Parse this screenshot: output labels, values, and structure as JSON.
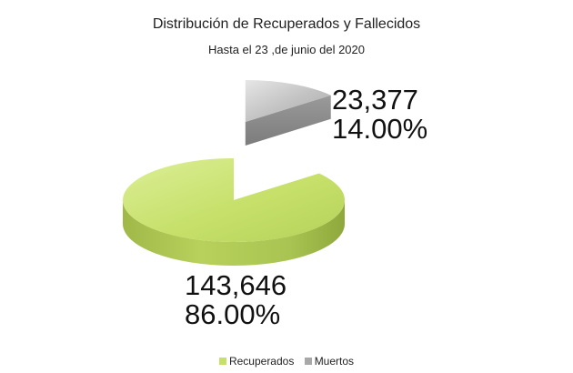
{
  "chart_data": {
    "type": "pie",
    "style": "3d-exploded",
    "title": "Distribución de Recuperados y Fallecidos",
    "subtitle": "Hasta el 23 ,de junio del 2020",
    "categories": [
      "Recuperados",
      "Muertos"
    ],
    "values": [
      143646,
      23377
    ],
    "value_labels": [
      "143,646",
      "23,377"
    ],
    "percent_labels": [
      "86.00%",
      "14.00%"
    ],
    "percentages": [
      86.0,
      14.0
    ],
    "colors": [
      "#c6e06a",
      "#a8a8a8"
    ],
    "legend_position": "bottom"
  }
}
